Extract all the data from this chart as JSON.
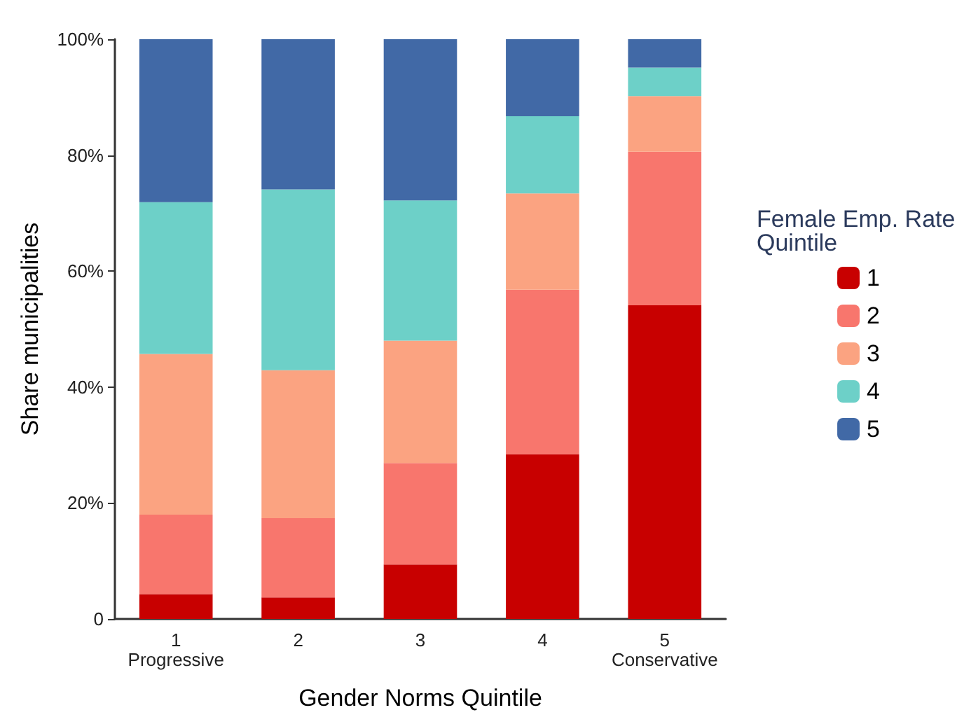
{
  "chart_data": {
    "type": "bar",
    "stacked": true,
    "xlabel": "Gender Norms Quintile",
    "ylabel": "Share municipalities",
    "legend_title": "Female Emp. Rate\nQuintile",
    "legend": "right",
    "grid": false,
    "categories": [
      "1\nProgressive",
      "2",
      "3",
      "4",
      "5\nConservative"
    ],
    "ylim": [
      0,
      100
    ],
    "yticks": [
      {
        "value": 0,
        "label": "0"
      },
      {
        "value": 20,
        "label": "20%"
      },
      {
        "value": 40,
        "label": "40%"
      },
      {
        "value": 60,
        "label": "60%"
      },
      {
        "value": 80,
        "label": "80%"
      },
      {
        "value": 100,
        "label": "100%"
      }
    ],
    "series": [
      {
        "name": "1",
        "color": "#c80000",
        "values": [
          4.3,
          3.7,
          9.4,
          28.4,
          54.1
        ]
      },
      {
        "name": "2",
        "color": "#f8766d",
        "values": [
          13.7,
          13.7,
          17.5,
          28.4,
          26.5
        ]
      },
      {
        "name": "3",
        "color": "#fba381",
        "values": [
          27.7,
          25.5,
          21.1,
          16.6,
          9.6
        ]
      },
      {
        "name": "4",
        "color": "#6dd0c8",
        "values": [
          26.2,
          31.2,
          24.2,
          13.3,
          4.9
        ]
      },
      {
        "name": "5",
        "color": "#4169a6",
        "values": [
          28.1,
          25.9,
          27.8,
          13.3,
          4.9
        ]
      }
    ]
  }
}
